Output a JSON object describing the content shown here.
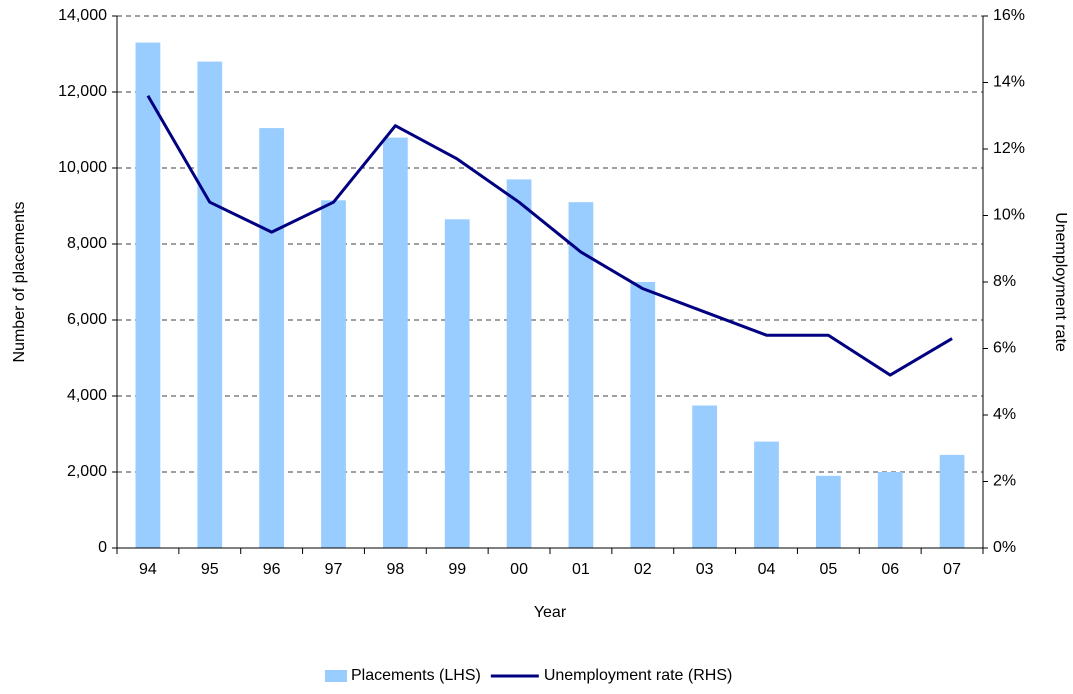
{
  "chart_data": {
    "type": "bar_line",
    "x_label": "Year",
    "y_label": "Number of placements",
    "y2_label": "Unemployment rate",
    "categories": [
      "94",
      "95",
      "96",
      "97",
      "98",
      "99",
      "00",
      "01",
      "02",
      "03",
      "04",
      "05",
      "06",
      "07"
    ],
    "series": [
      {
        "name": "Placements (LHS)",
        "type": "bar",
        "color": "#99ccff",
        "values": [
          13300,
          12800,
          11050,
          9150,
          10800,
          8650,
          9700,
          9100,
          7000,
          3750,
          2800,
          1900,
          2000,
          2450
        ]
      },
      {
        "name": "Unemployment rate (RHS)",
        "type": "line",
        "axis": "y2",
        "color": "#000080",
        "values": [
          13.6,
          10.4,
          9.5,
          10.4,
          12.7,
          11.7,
          10.4,
          8.9,
          7.8,
          7.1,
          6.4,
          6.4,
          5.2,
          6.3
        ]
      }
    ],
    "ylim": [
      0,
      14000
    ],
    "yticks": [
      0,
      {
        "value": 2000,
        "label": "2,000"
      },
      {
        "value": 4000,
        "label": "4,000"
      },
      {
        "value": 6000,
        "label": "6,000"
      },
      {
        "value": 8000,
        "label": "8,000"
      },
      {
        "value": 10000,
        "label": "10,000"
      },
      {
        "value": 12000,
        "label": "12,000"
      },
      {
        "value": 14000,
        "label": "14,000"
      }
    ],
    "y2lim": [
      0,
      16
    ],
    "y2ticks": [
      {
        "value": 0,
        "label": "0%"
      },
      {
        "value": 2,
        "label": "2%"
      },
      {
        "value": 4,
        "label": "4%"
      },
      {
        "value": 6,
        "label": "6%"
      },
      {
        "value": 8,
        "label": "8%"
      },
      {
        "value": 10,
        "label": "10%"
      },
      {
        "value": 12,
        "label": "12%"
      },
      {
        "value": 14,
        "label": "14%"
      },
      {
        "value": 16,
        "label": "16%"
      }
    ],
    "grid": true,
    "legend": "bottom"
  }
}
